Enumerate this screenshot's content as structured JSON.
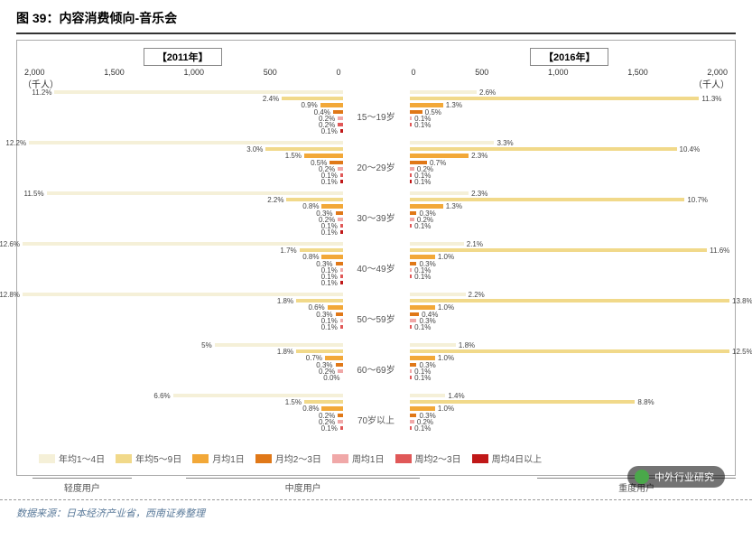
{
  "figure_title": "图 39：内容消费倾向-音乐会",
  "year_left": "【2011年】",
  "year_right": "【2016年】",
  "unit": "（千人）",
  "age_groups": [
    "15～19岁",
    "20～29岁",
    "30～39岁",
    "40～49岁",
    "50～59岁",
    "60～69岁",
    "70岁以上"
  ],
  "axis": {
    "max": 2000,
    "ticks_left": [
      "2,000",
      "1,500",
      "1,000",
      "500",
      "0"
    ],
    "ticks_right": [
      "0",
      "500",
      "1,000",
      "1,500",
      "2,000"
    ]
  },
  "series_colors": [
    "#f5f0d8",
    "#f1d98a",
    "#f2a838",
    "#e07818",
    "#f0a8a8",
    "#e05858",
    "#c01818"
  ],
  "series_names": [
    "年均1～4日",
    "年均5～9日",
    "月均1日",
    "月均2～3日",
    "周均1日",
    "周均2～3日",
    "周均4日以上"
  ],
  "group_labels": [
    "轻度用户",
    "中度用户",
    "重度用户"
  ],
  "data_left": [
    [
      [
        1800,
        "11.2%"
      ],
      [
        380,
        "2.4%"
      ],
      [
        140,
        "0.9%"
      ],
      [
        60,
        "0.4%"
      ],
      [
        30,
        "0.2%"
      ],
      [
        30,
        "0.2%"
      ],
      [
        15,
        "0.1%"
      ]
    ],
    [
      [
        1960,
        "12.2%"
      ],
      [
        480,
        "3.0%"
      ],
      [
        240,
        "1.5%"
      ],
      [
        80,
        "0.5%"
      ],
      [
        30,
        "0.2%"
      ],
      [
        15,
        "0.1%"
      ],
      [
        15,
        "0.1%"
      ]
    ],
    [
      [
        1850,
        "11.5%"
      ],
      [
        350,
        "2.2%"
      ],
      [
        130,
        "0.8%"
      ],
      [
        45,
        "0.3%"
      ],
      [
        30,
        "0.2%"
      ],
      [
        15,
        "0.1%"
      ],
      [
        15,
        "0.1%"
      ]
    ],
    [
      [
        2000,
        "12.6%"
      ],
      [
        270,
        "1.7%"
      ],
      [
        130,
        "0.8%"
      ],
      [
        45,
        "0.3%"
      ],
      [
        15,
        "0.1%"
      ],
      [
        15,
        "0.1%"
      ],
      [
        15,
        "0.1%"
      ]
    ],
    [
      [
        2000,
        "12.8%"
      ],
      [
        290,
        "1.8%"
      ],
      [
        95,
        "0.6%"
      ],
      [
        45,
        "0.3%"
      ],
      [
        15,
        "0.1%"
      ],
      [
        15,
        "0.1%"
      ],
      [
        0,
        ""
      ]
    ],
    [
      [
        800,
        "5%"
      ],
      [
        290,
        "1.8%"
      ],
      [
        110,
        "0.7%"
      ],
      [
        45,
        "0.3%"
      ],
      [
        30,
        "0.2%"
      ],
      [
        0,
        "0.0%"
      ],
      [
        0,
        ""
      ]
    ],
    [
      [
        1060,
        "6.6%"
      ],
      [
        240,
        "1.5%"
      ],
      [
        130,
        "0.8%"
      ],
      [
        30,
        "0.2%"
      ],
      [
        30,
        "0.2%"
      ],
      [
        15,
        "0.1%"
      ],
      [
        0,
        ""
      ]
    ]
  ],
  "data_right": [
    [
      [
        420,
        "2.6%"
      ],
      [
        1810,
        "11.3%"
      ],
      [
        210,
        "1.3%"
      ],
      [
        80,
        "0.5%"
      ],
      [
        15,
        "0.1%"
      ],
      [
        15,
        "0.1%"
      ],
      [
        0,
        ""
      ]
    ],
    [
      [
        530,
        "3.3%"
      ],
      [
        1670,
        "10.4%"
      ],
      [
        370,
        "2.3%"
      ],
      [
        110,
        "0.7%"
      ],
      [
        30,
        "0.2%"
      ],
      [
        15,
        "0.1%"
      ],
      [
        15,
        "0.1%"
      ]
    ],
    [
      [
        370,
        "2.3%"
      ],
      [
        1720,
        "10.7%"
      ],
      [
        210,
        "1.3%"
      ],
      [
        45,
        "0.3%"
      ],
      [
        30,
        "0.2%"
      ],
      [
        15,
        "0.1%"
      ],
      [
        0,
        ""
      ]
    ],
    [
      [
        340,
        "2.1%"
      ],
      [
        1860,
        "11.6%"
      ],
      [
        160,
        "1.0%"
      ],
      [
        45,
        "0.3%"
      ],
      [
        15,
        "0.1%"
      ],
      [
        15,
        "0.1%"
      ],
      [
        0,
        ""
      ]
    ],
    [
      [
        350,
        "2.2%"
      ],
      [
        2000,
        "13.8%"
      ],
      [
        160,
        "1.0%"
      ],
      [
        60,
        "0.4%"
      ],
      [
        45,
        "0.3%"
      ],
      [
        15,
        "0.1%"
      ],
      [
        0,
        ""
      ]
    ],
    [
      [
        290,
        "1.8%"
      ],
      [
        2000,
        "12.5%"
      ],
      [
        160,
        "1.0%"
      ],
      [
        45,
        "0.3%"
      ],
      [
        15,
        "0.1%"
      ],
      [
        15,
        "0.1%"
      ],
      [
        0,
        ""
      ]
    ],
    [
      [
        225,
        "1.4%"
      ],
      [
        1410,
        "8.8%"
      ],
      [
        160,
        "1.0%"
      ],
      [
        45,
        "0.3%"
      ],
      [
        30,
        "0.2%"
      ],
      [
        15,
        "0.1%"
      ],
      [
        0,
        ""
      ]
    ]
  ],
  "source": "数据来源：日本经济产业省，西南证券整理",
  "watermark": "中外行业研究"
}
